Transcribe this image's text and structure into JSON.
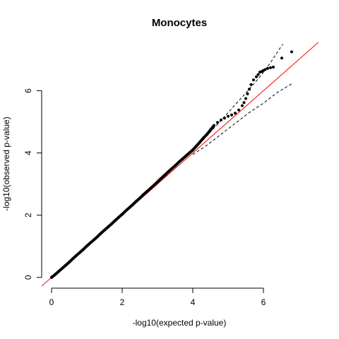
{
  "chart_data": {
    "type": "scatter",
    "title": "Monocytes",
    "xlabel": "-log10(expected p-value)",
    "ylabel": "-log10(observed p-value)",
    "xlim": [
      -0.28,
      7.56
    ],
    "ylim": [
      -0.3,
      7.6
    ],
    "xticks": [
      0,
      2,
      4,
      6
    ],
    "yticks": [
      0,
      2,
      4,
      6
    ],
    "grid": false,
    "legend": "none",
    "colors": {
      "points": "#000000",
      "reference_line": "#ff0000",
      "envelope": "#000000"
    },
    "reference_line": {
      "slope": 1,
      "intercept": 0
    },
    "points": [
      [
        0.0,
        0.0
      ],
      [
        0.1,
        0.09
      ],
      [
        0.2,
        0.19
      ],
      [
        0.3,
        0.29
      ],
      [
        0.4,
        0.39
      ],
      [
        0.5,
        0.49
      ],
      [
        0.6,
        0.6
      ],
      [
        0.7,
        0.7
      ],
      [
        0.8,
        0.8
      ],
      [
        0.9,
        0.9
      ],
      [
        1.0,
        1.01
      ],
      [
        1.1,
        1.11
      ],
      [
        1.2,
        1.21
      ],
      [
        1.3,
        1.31
      ],
      [
        1.4,
        1.42
      ],
      [
        1.5,
        1.52
      ],
      [
        1.6,
        1.62
      ],
      [
        1.7,
        1.72
      ],
      [
        1.8,
        1.83
      ],
      [
        1.9,
        1.93
      ],
      [
        2.0,
        2.03
      ],
      [
        2.1,
        2.14
      ],
      [
        2.2,
        2.24
      ],
      [
        2.3,
        2.34
      ],
      [
        2.4,
        2.45
      ],
      [
        2.5,
        2.55
      ],
      [
        2.6,
        2.66
      ],
      [
        2.7,
        2.76
      ],
      [
        2.8,
        2.86
      ],
      [
        2.9,
        2.96
      ],
      [
        3.0,
        3.07
      ],
      [
        3.1,
        3.18
      ],
      [
        3.2,
        3.28
      ],
      [
        3.3,
        3.39
      ],
      [
        3.4,
        3.49
      ],
      [
        3.5,
        3.59
      ],
      [
        3.6,
        3.7
      ],
      [
        3.7,
        3.8
      ],
      [
        3.8,
        3.9
      ],
      [
        3.9,
        4.0
      ],
      [
        4.0,
        4.1
      ],
      [
        4.1,
        4.22
      ],
      [
        4.2,
        4.35
      ],
      [
        4.3,
        4.48
      ],
      [
        4.4,
        4.6
      ],
      [
        4.5,
        4.74
      ],
      [
        4.6,
        4.88
      ],
      [
        4.7,
        4.98
      ],
      [
        4.8,
        5.06
      ],
      [
        4.9,
        5.12
      ],
      [
        5.0,
        5.18
      ],
      [
        5.1,
        5.22
      ],
      [
        5.2,
        5.28
      ],
      [
        5.3,
        5.38
      ],
      [
        5.4,
        5.52
      ],
      [
        5.45,
        5.62
      ],
      [
        5.5,
        5.75
      ],
      [
        5.55,
        5.9
      ],
      [
        5.6,
        6.05
      ],
      [
        5.65,
        6.2
      ],
      [
        5.72,
        6.35
      ],
      [
        5.8,
        6.45
      ],
      [
        5.85,
        6.52
      ],
      [
        5.9,
        6.6
      ],
      [
        5.95,
        6.62
      ],
      [
        6.0,
        6.65
      ],
      [
        6.05,
        6.68
      ],
      [
        6.12,
        6.72
      ],
      [
        6.2,
        6.74
      ],
      [
        6.28,
        6.76
      ],
      [
        6.52,
        7.05
      ],
      [
        6.8,
        7.25
      ]
    ],
    "envelope_upper": [
      [
        4.0,
        4.05
      ],
      [
        4.4,
        4.55
      ],
      [
        4.8,
        5.05
      ],
      [
        5.2,
        5.55
      ],
      [
        5.6,
        6.05
      ],
      [
        5.9,
        6.45
      ],
      [
        6.2,
        6.9
      ],
      [
        6.4,
        7.25
      ],
      [
        6.55,
        7.5
      ]
    ],
    "envelope_lower": [
      [
        4.0,
        3.95
      ],
      [
        4.4,
        4.25
      ],
      [
        4.8,
        4.6
      ],
      [
        5.2,
        4.95
      ],
      [
        5.6,
        5.3
      ],
      [
        6.0,
        5.6
      ],
      [
        6.4,
        5.95
      ],
      [
        6.8,
        6.22
      ]
    ]
  }
}
